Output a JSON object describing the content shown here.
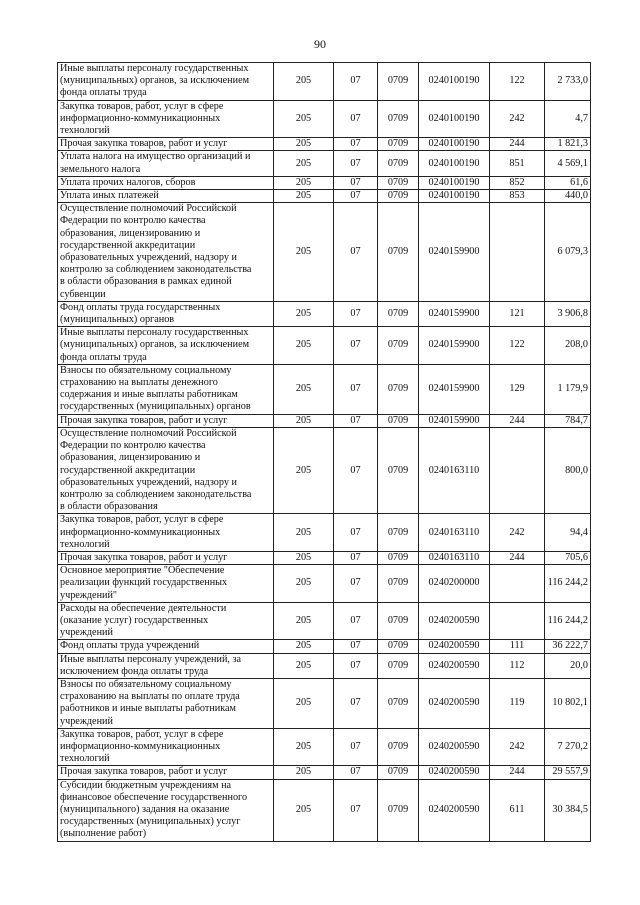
{
  "page_number": "90",
  "rows": [
    {
      "desc": "Иные выплаты персоналу государственных\n(муниципальных) органов, за исключением\nфонда оплаты труда",
      "ved": "205",
      "rz": "07",
      "pr": "0709",
      "csr": "0240100190",
      "vr": "122",
      "sum": "2 733,0"
    },
    {
      "desc": "Закупка товаров, работ, услуг в сфере\nинформационно-коммуникационных\nтехнологий",
      "ved": "205",
      "rz": "07",
      "pr": "0709",
      "csr": "0240100190",
      "vr": "242",
      "sum": "4,7"
    },
    {
      "desc": "Прочая закупка товаров, работ и услуг",
      "ved": "205",
      "rz": "07",
      "pr": "0709",
      "csr": "0240100190",
      "vr": "244",
      "sum": "1 821,3"
    },
    {
      "desc": "Уплата налога на имущество организаций и\nземельного налога",
      "ved": "205",
      "rz": "07",
      "pr": "0709",
      "csr": "0240100190",
      "vr": "851",
      "sum": "4 569,1"
    },
    {
      "desc": "Уплата прочих налогов, сборов",
      "ved": "205",
      "rz": "07",
      "pr": "0709",
      "csr": "0240100190",
      "vr": "852",
      "sum": "61,6"
    },
    {
      "desc": "Уплата иных платежей",
      "ved": "205",
      "rz": "07",
      "pr": "0709",
      "csr": "0240100190",
      "vr": "853",
      "sum": "440,0"
    },
    {
      "desc": "Осуществление полномочий Российской\nФедерации по контролю качества\nобразования, лицензированию и\nгосударственной аккредитации\nобразовательных учреждений, надзору и\nконтролю за соблюдением законодательства\nв области образования в рамках единой\nсубвенции",
      "ved": "205",
      "rz": "07",
      "pr": "0709",
      "csr": "0240159900",
      "vr": "",
      "sum": "6 079,3"
    },
    {
      "desc": "Фонд оплаты труда государственных\n(муниципальных) органов",
      "ved": "205",
      "rz": "07",
      "pr": "0709",
      "csr": "0240159900",
      "vr": "121",
      "sum": "3 906,8"
    },
    {
      "desc": "Иные выплаты персоналу государственных\n(муниципальных) органов, за исключением\nфонда оплаты труда",
      "ved": "205",
      "rz": "07",
      "pr": "0709",
      "csr": "0240159900",
      "vr": "122",
      "sum": "208,0"
    },
    {
      "desc": "Взносы по обязательному социальному\nстрахованию на выплаты денежного\nсодержания и иные выплаты работникам\nгосударственных (муниципальных) органов",
      "ved": "205",
      "rz": "07",
      "pr": "0709",
      "csr": "0240159900",
      "vr": "129",
      "sum": "1 179,9"
    },
    {
      "desc": "Прочая закупка товаров, работ и услуг",
      "ved": "205",
      "rz": "07",
      "pr": "0709",
      "csr": "0240159900",
      "vr": "244",
      "sum": "784,7"
    },
    {
      "desc": "Осуществление полномочий Российской\nФедерации по контролю качества\nобразования, лицензированию и\nгосударственной аккредитации\nобразовательных учреждений, надзору и\nконтролю за соблюдением законодательства\nв области образования",
      "ved": "205",
      "rz": "07",
      "pr": "0709",
      "csr": "0240163110",
      "vr": "",
      "sum": "800,0"
    },
    {
      "desc": "Закупка товаров, работ, услуг в сфере\nинформационно-коммуникационных\nтехнологий",
      "ved": "205",
      "rz": "07",
      "pr": "0709",
      "csr": "0240163110",
      "vr": "242",
      "sum": "94,4"
    },
    {
      "desc": "Прочая закупка товаров, работ и услуг",
      "ved": "205",
      "rz": "07",
      "pr": "0709",
      "csr": "0240163110",
      "vr": "244",
      "sum": "705,6"
    },
    {
      "desc": "Основное мероприятие \"Обеспечение\nреализации функций государственных\nучреждений\"",
      "ved": "205",
      "rz": "07",
      "pr": "0709",
      "csr": "0240200000",
      "vr": "",
      "sum": "116 244,2"
    },
    {
      "desc": "Расходы на обеспечение деятельности\n(оказание услуг) государственных\nучреждений",
      "ved": "205",
      "rz": "07",
      "pr": "0709",
      "csr": "0240200590",
      "vr": "",
      "sum": "116 244,2"
    },
    {
      "desc": "Фонд оплаты труда учреждений",
      "ved": "205",
      "rz": "07",
      "pr": "0709",
      "csr": "0240200590",
      "vr": "111",
      "sum": "36 222,7"
    },
    {
      "desc": "Иные выплаты персоналу учреждений, за\nисключением фонда оплаты труда",
      "ved": "205",
      "rz": "07",
      "pr": "0709",
      "csr": "0240200590",
      "vr": "112",
      "sum": "20,0"
    },
    {
      "desc": "Взносы по обязательному социальному\nстрахованию на выплаты по оплате труда\nработников и иные выплаты работникам\nучреждений",
      "ved": "205",
      "rz": "07",
      "pr": "0709",
      "csr": "0240200590",
      "vr": "119",
      "sum": "10 802,1"
    },
    {
      "desc": "Закупка товаров, работ, услуг в сфере\nинформационно-коммуникационных\nтехнологий",
      "ved": "205",
      "rz": "07",
      "pr": "0709",
      "csr": "0240200590",
      "vr": "242",
      "sum": "7 270,2"
    },
    {
      "desc": "Прочая закупка товаров, работ и услуг",
      "ved": "205",
      "rz": "07",
      "pr": "0709",
      "csr": "0240200590",
      "vr": "244",
      "sum": "29 557,9"
    },
    {
      "desc": "Субсидии бюджетным учреждениям на\nфинансовое обеспечение государственного\n(муниципального) задания на оказание\nгосударственных (муниципальных) услуг\n(выполнение работ)",
      "ved": "205",
      "rz": "07",
      "pr": "0709",
      "csr": "0240200590",
      "vr": "611",
      "sum": "30 384,5"
    }
  ]
}
